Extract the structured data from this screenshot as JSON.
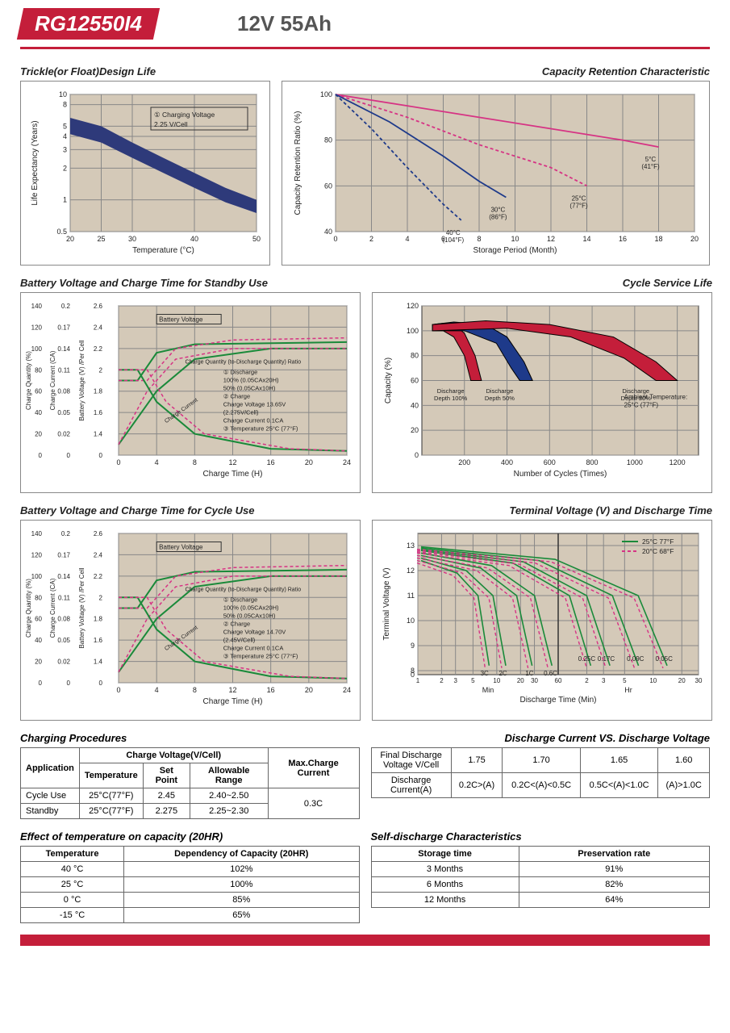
{
  "header": {
    "model": "RG12550I4",
    "spec": "12V  55Ah"
  },
  "charts": {
    "trickle": {
      "title": "Trickle(or Float)Design Life",
      "xlabel": "Temperature (°C)",
      "ylabel": "Life Expectancy (Years)",
      "xticks": [
        20,
        25,
        30,
        40,
        50
      ],
      "yticks": [
        0.5,
        1,
        2,
        3,
        4,
        5,
        8,
        10
      ],
      "annotation": "① Charging Voltage\n2.25 V/Cell",
      "background": "#d4c9b8",
      "band_color": "#2e3a7a",
      "grid_color": "#888",
      "band_upper": [
        [
          20,
          6
        ],
        [
          25,
          5
        ],
        [
          30,
          3.5
        ],
        [
          35,
          2.5
        ],
        [
          40,
          1.8
        ],
        [
          45,
          1.3
        ],
        [
          50,
          1.0
        ]
      ],
      "band_lower": [
        [
          20,
          4.2
        ],
        [
          25,
          3.5
        ],
        [
          30,
          2.5
        ],
        [
          35,
          1.8
        ],
        [
          40,
          1.3
        ],
        [
          45,
          0.95
        ],
        [
          50,
          0.75
        ]
      ]
    },
    "retention": {
      "title": "Capacity Retention Characteristic",
      "xlabel": "Storage Period (Month)",
      "ylabel": "Capacity Retention Ratio (%)",
      "xticks": [
        0,
        2,
        4,
        6,
        8,
        10,
        12,
        14,
        16,
        18,
        20
      ],
      "yticks": [
        40,
        60,
        80,
        100
      ],
      "background": "#d4c9b8",
      "grid_color": "#888",
      "curves": [
        {
          "label": "5°C\n(41°F)",
          "color": "#d63384",
          "dash": "none",
          "data": [
            [
              0,
              100
            ],
            [
              4,
              95
            ],
            [
              8,
              90
            ],
            [
              12,
              85
            ],
            [
              16,
              80
            ],
            [
              18,
              77
            ]
          ]
        },
        {
          "label": "25°C\n(77°F)",
          "color": "#d63384",
          "dash": "4 3",
          "data": [
            [
              0,
              100
            ],
            [
              4,
              90
            ],
            [
              8,
              78
            ],
            [
              12,
              68
            ],
            [
              14,
              60
            ]
          ]
        },
        {
          "label": "30°C\n(86°F)",
          "color": "#1e3a8a",
          "dash": "none",
          "data": [
            [
              0,
              100
            ],
            [
              3,
              88
            ],
            [
              6,
              73
            ],
            [
              8,
              62
            ],
            [
              9.5,
              55
            ]
          ]
        },
        {
          "label": "40°C\n(104°F)",
          "color": "#1e3a8a",
          "dash": "4 3",
          "data": [
            [
              0,
              100
            ],
            [
              2,
              85
            ],
            [
              4,
              68
            ],
            [
              6,
              52
            ],
            [
              7,
              45
            ]
          ]
        }
      ]
    },
    "standby": {
      "title": "Battery Voltage and Charge Time for Standby Use",
      "xlabel": "Charge Time (H)",
      "y1label": "Charge Quantity (%)",
      "y2label": "Charge Current (CA)",
      "y3label": "Battery Voltage (V) /Per Cell",
      "xticks": [
        0,
        4,
        8,
        12,
        16,
        20,
        24
      ],
      "y1ticks": [
        0,
        20,
        40,
        60,
        80,
        100,
        120,
        140
      ],
      "y2ticks": [
        0,
        0.02,
        0.05,
        0.08,
        0.11,
        0.14,
        0.17,
        0.2
      ],
      "y3ticks": [
        0,
        1.4,
        1.6,
        1.8,
        2.0,
        2.2,
        2.4,
        2.6
      ],
      "background": "#d4c9b8",
      "voltage_color": "#1a8a3a",
      "dash_color": "#d63384",
      "notes": [
        "① Discharge",
        "100% (0.05CAx20H)",
        "50% (0.05CAx10H)",
        "② Charge",
        "Charge Voltage 13.65V",
        "(2.275V/Cell)",
        "Charge Current 0.1CA",
        "③ Temperature 25°C (77°F)"
      ],
      "bv_label": "Battery Voltage",
      "cq_label": "Charge Quantity (to-Discharge Quantity) Ratio",
      "cc_label": "Charge Current"
    },
    "cycle_life": {
      "title": "Cycle Service Life",
      "xlabel": "Number of Cycles (Times)",
      "ylabel": "Capacity (%)",
      "xticks": [
        200,
        400,
        600,
        800,
        1000,
        1200
      ],
      "yticks": [
        0,
        20,
        40,
        60,
        80,
        100,
        120
      ],
      "background": "#d4c9b8",
      "bands": [
        {
          "label": "Discharge\nDepth 100%",
          "color": "#c41e3a",
          "upper": [
            [
              50,
              105
            ],
            [
              100,
              106
            ],
            [
              150,
              105
            ],
            [
              200,
              98
            ],
            [
              250,
              80
            ],
            [
              280,
              60
            ]
          ],
          "lower": [
            [
              50,
              100
            ],
            [
              100,
              100
            ],
            [
              150,
              95
            ],
            [
              200,
              80
            ],
            [
              230,
              60
            ]
          ]
        },
        {
          "label": "Discharge\nDepth 50%",
          "color": "#1e3a8a",
          "upper": [
            [
              50,
              105
            ],
            [
              150,
              107
            ],
            [
              300,
              105
            ],
            [
              400,
              95
            ],
            [
              480,
              75
            ],
            [
              520,
              60
            ]
          ],
          "lower": [
            [
              50,
              100
            ],
            [
              200,
              100
            ],
            [
              350,
              90
            ],
            [
              420,
              70
            ],
            [
              460,
              60
            ]
          ]
        },
        {
          "label": "Discharge\nDepth 30%",
          "color": "#c41e3a",
          "upper": [
            [
              50,
              105
            ],
            [
              300,
              108
            ],
            [
              600,
              105
            ],
            [
              900,
              95
            ],
            [
              1100,
              75
            ],
            [
              1200,
              60
            ]
          ],
          "lower": [
            [
              50,
              100
            ],
            [
              400,
              102
            ],
            [
              700,
              95
            ],
            [
              950,
              78
            ],
            [
              1100,
              60
            ]
          ]
        }
      ],
      "ambient_note": "Ambient Temperature:\n25°C (77°F)"
    },
    "cycle_charge": {
      "title": "Battery Voltage and Charge Time for Cycle Use",
      "xlabel": "Charge Time (H)",
      "y1label": "Charge Quantity (%)",
      "y2label": "Charge Current (CA)",
      "y3label": "Battery Voltage (V) /Per Cell",
      "xticks": [
        0,
        4,
        8,
        12,
        16,
        20,
        24
      ],
      "y1ticks": [
        0,
        20,
        40,
        60,
        80,
        100,
        120,
        140
      ],
      "y2ticks": [
        0,
        0.02,
        0.05,
        0.08,
        0.11,
        0.14,
        0.17,
        0.2
      ],
      "y3ticks": [
        0,
        1.4,
        1.6,
        1.8,
        2.0,
        2.2,
        2.4,
        2.6
      ],
      "background": "#d4c9b8",
      "voltage_color": "#1a8a3a",
      "dash_color": "#d63384",
      "notes": [
        "① Discharge",
        "100% (0.05CAx20H)",
        "50% (0.05CAx10H)",
        "② Charge",
        "Charge Voltage 14.70V",
        "(2.45V/Cell)",
        "Charge Current 0.1CA",
        "③ Temperature 25°C (77°F)"
      ],
      "bv_label": "Battery Voltage",
      "cq_label": "Charge Quantity (to-Discharge Quantity) Ratio",
      "cc_label": "Charge Current"
    },
    "terminal": {
      "title": "Terminal Voltage (V) and Discharge Time",
      "xlabel": "Discharge Time (Min)",
      "ylabel": "Terminal Voltage (V)",
      "yticks": [
        0,
        8,
        9,
        10,
        11,
        12,
        13
      ],
      "xsections": [
        "Min",
        "Hr"
      ],
      "xticks_left": [
        1,
        2,
        3,
        5,
        10,
        20,
        30,
        60
      ],
      "xticks_right": [
        2,
        3,
        5,
        10,
        20,
        30
      ],
      "background": "#d4c9b8",
      "legend": [
        {
          "label": "25°C 77°F",
          "color": "#1a8a3a",
          "dash": "none"
        },
        {
          "label": "20°C 68°F",
          "color": "#d63384",
          "dash": "4 3"
        }
      ],
      "rate_labels": [
        "3C",
        "2C",
        "1C",
        "0.6C",
        "0.25C",
        "0.17C",
        "0.09C",
        "0.05C"
      ]
    }
  },
  "tables": {
    "charging": {
      "title": "Charging Procedures",
      "headers": {
        "app": "Application",
        "cv": "Charge Voltage(V/Cell)",
        "temp": "Temperature",
        "sp": "Set Point",
        "ar": "Allowable Range",
        "max": "Max.Charge Current"
      },
      "rows": [
        {
          "app": "Cycle Use",
          "temp": "25°C(77°F)",
          "sp": "2.45",
          "ar": "2.40~2.50"
        },
        {
          "app": "Standby",
          "temp": "25°C(77°F)",
          "sp": "2.275",
          "ar": "2.25~2.30"
        }
      ],
      "max_current": "0.3C"
    },
    "discharge_iv": {
      "title": "Discharge Current VS. Discharge Voltage",
      "r1label": "Final Discharge\nVoltage V/Cell",
      "r1": [
        "1.75",
        "1.70",
        "1.65",
        "1.60"
      ],
      "r2label": "Discharge\nCurrent(A)",
      "r2": [
        "0.2C>(A)",
        "0.2C<(A)<0.5C",
        "0.5C<(A)<1.0C",
        "(A)>1.0C"
      ]
    },
    "temp_capacity": {
      "title": "Effect of temperature on capacity (20HR)",
      "headers": [
        "Temperature",
        "Dependency of Capacity (20HR)"
      ],
      "rows": [
        [
          "40 °C",
          "102%"
        ],
        [
          "25 °C",
          "100%"
        ],
        [
          "0 °C",
          "85%"
        ],
        [
          "-15 °C",
          "65%"
        ]
      ]
    },
    "self_discharge": {
      "title": "Self-discharge Characteristics",
      "headers": [
        "Storage time",
        "Preservation rate"
      ],
      "rows": [
        [
          "3 Months",
          "91%"
        ],
        [
          "6 Months",
          "82%"
        ],
        [
          "12 Months",
          "64%"
        ]
      ]
    }
  }
}
